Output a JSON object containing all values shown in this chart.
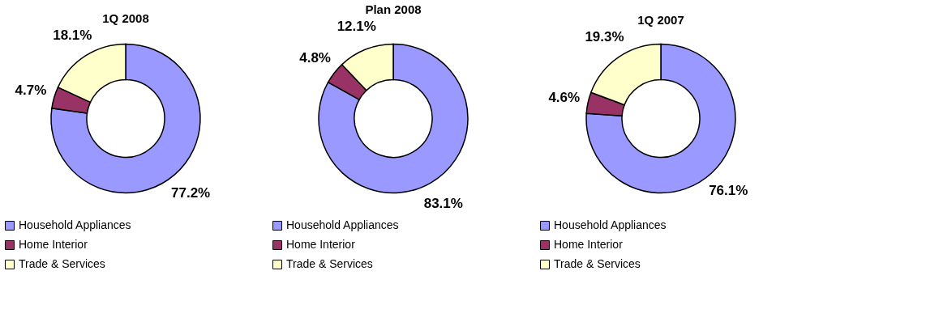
{
  "chart_data": [
    {
      "type": "donut",
      "title": "1Q 2008",
      "categories": [
        "Household Appliances",
        "Home Interior",
        "Trade & Services"
      ],
      "values": [
        77.2,
        4.7,
        18.1
      ],
      "value_labels": [
        "77.2%",
        "4.7%",
        "18.1%"
      ],
      "colors": [
        "#9999ff",
        "#993366",
        "#ffffcc"
      ],
      "legend": "bottom"
    },
    {
      "type": "donut",
      "title": "Plan 2008",
      "categories": [
        "Household Appliances",
        "Home Interior",
        "Trade & Services"
      ],
      "values": [
        83.1,
        4.8,
        12.1
      ],
      "value_labels": [
        "83.1%",
        "4.8%",
        "12.1%"
      ],
      "colors": [
        "#9999ff",
        "#993366",
        "#ffffcc"
      ],
      "legend": "bottom"
    },
    {
      "type": "donut",
      "title": "1Q 2007",
      "categories": [
        "Household Appliances",
        "Home Interior",
        "Trade & Services"
      ],
      "values": [
        76.1,
        4.6,
        19.3
      ],
      "value_labels": [
        "76.1%",
        "4.6%",
        "19.3%"
      ],
      "colors": [
        "#9999ff",
        "#993366",
        "#ffffcc"
      ],
      "legend": "bottom"
    }
  ]
}
